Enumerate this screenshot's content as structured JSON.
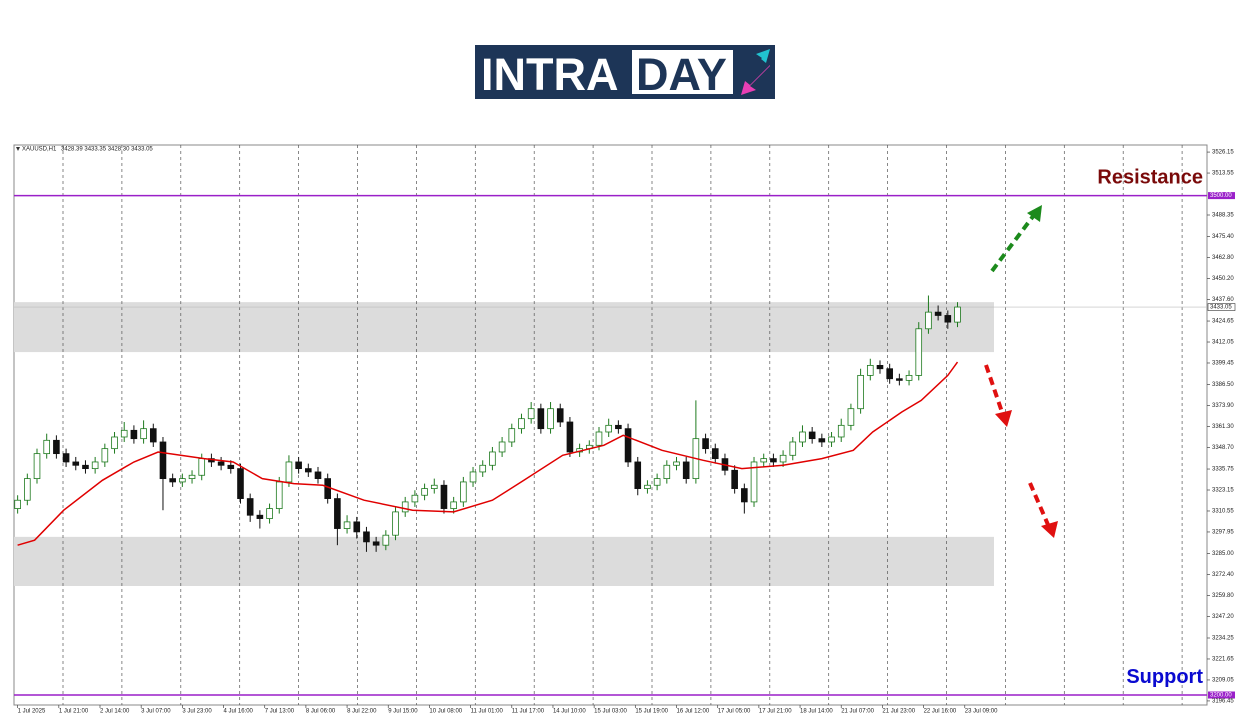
{
  "logo": {
    "left": "INTRA",
    "right": "DAY"
  },
  "chart_data": {
    "type": "candlestick",
    "title": "XAUUSD,H1",
    "subtitle": "3428.39 3433.35 3428.30 3433.05",
    "colors": {
      "up": "#1e7a1e",
      "down": "#111111"
    },
    "x": [
      0,
      4,
      8,
      12,
      16,
      20,
      24,
      28,
      32,
      36,
      40,
      44,
      48,
      52,
      56,
      60,
      64,
      68,
      72,
      76,
      80,
      84,
      88,
      92,
      96,
      100,
      104,
      108,
      112,
      116,
      120,
      124,
      128,
      132,
      136,
      140,
      144,
      148,
      152,
      156,
      160,
      164,
      168,
      172,
      176,
      180,
      184,
      188,
      192,
      196,
      200,
      204,
      208,
      212,
      216,
      220,
      224,
      228,
      232,
      236,
      240,
      244,
      248,
      252,
      256,
      260,
      264,
      268,
      272,
      276,
      280,
      284,
      288,
      292,
      296,
      300,
      304,
      308,
      312,
      316,
      320,
      324,
      328,
      332,
      336,
      340,
      344,
      348,
      352,
      356,
      360,
      364,
      368,
      372,
      376,
      380,
      384,
      388
    ],
    "open": [
      3312,
      3317,
      3330,
      3345,
      3353,
      3345,
      3340,
      3338,
      3336,
      3340,
      3348,
      3355,
      3359,
      3354,
      3360,
      3352,
      3330,
      3328,
      3330,
      3332,
      3342,
      3340,
      3338,
      3336,
      3318,
      3308,
      3306,
      3312,
      3328,
      3340,
      3336,
      3334,
      3330,
      3318,
      3300,
      3304,
      3298,
      3292,
      3290,
      3296,
      3310,
      3316,
      3320,
      3324,
      3326,
      3312,
      3316,
      3328,
      3334,
      3338,
      3346,
      3352,
      3360,
      3366,
      3372,
      3360,
      3372,
      3364,
      3346,
      3348,
      3350,
      3358,
      3362,
      3360,
      3340,
      3324,
      3326,
      3330,
      3338,
      3340,
      3330,
      3354,
      3348,
      3342,
      3335,
      3324,
      3316,
      3340,
      3342,
      3340,
      3344,
      3352,
      3358,
      3354,
      3352,
      3355,
      3362,
      3372,
      3392,
      3398,
      3396,
      3390,
      3389,
      3392,
      3420,
      3430,
      3428,
      3424
    ],
    "high": [
      3320,
      3333,
      3348,
      3357,
      3356,
      3348,
      3343,
      3341,
      3343,
      3351,
      3358,
      3364,
      3362,
      3365,
      3363,
      3355,
      3333,
      3333,
      3335,
      3345,
      3345,
      3343,
      3341,
      3339,
      3321,
      3311,
      3315,
      3331,
      3344,
      3343,
      3339,
      3337,
      3333,
      3321,
      3308,
      3307,
      3301,
      3295,
      3299,
      3313,
      3319,
      3323,
      3327,
      3330,
      3329,
      3319,
      3331,
      3337,
      3341,
      3349,
      3355,
      3363,
      3369,
      3376,
      3375,
      3376,
      3375,
      3367,
      3351,
      3353,
      3361,
      3366,
      3365,
      3363,
      3343,
      3329,
      3333,
      3341,
      3343,
      3343,
      3377,
      3357,
      3351,
      3345,
      3338,
      3327,
      3343,
      3345,
      3345,
      3347,
      3355,
      3362,
      3361,
      3357,
      3358,
      3366,
      3375,
      3396,
      3402,
      3401,
      3399,
      3393,
      3395,
      3424,
      3440,
      3434,
      3431,
      3436
    ],
    "low": [
      3309,
      3314,
      3327,
      3342,
      3342,
      3337,
      3335,
      3333,
      3333,
      3337,
      3345,
      3352,
      3351,
      3351,
      3349,
      3311,
      3325,
      3325,
      3327,
      3329,
      3337,
      3335,
      3333,
      3315,
      3304,
      3300,
      3303,
      3309,
      3325,
      3333,
      3331,
      3327,
      3315,
      3290,
      3297,
      3294,
      3286,
      3286,
      3287,
      3293,
      3307,
      3313,
      3317,
      3321,
      3309,
      3309,
      3313,
      3325,
      3331,
      3335,
      3343,
      3349,
      3357,
      3363,
      3357,
      3357,
      3361,
      3343,
      3343,
      3345,
      3347,
      3355,
      3357,
      3337,
      3320,
      3321,
      3323,
      3327,
      3335,
      3327,
      3327,
      3345,
      3339,
      3332,
      3321,
      3309,
      3313,
      3337,
      3337,
      3337,
      3341,
      3349,
      3351,
      3349,
      3349,
      3352,
      3359,
      3369,
      3389,
      3393,
      3387,
      3386,
      3386,
      3389,
      3417,
      3425,
      3420,
      3421
    ],
    "close": [
      3317,
      3330,
      3345,
      3353,
      3345,
      3340,
      3338,
      3336,
      3340,
      3348,
      3355,
      3359,
      3354,
      3360,
      3352,
      3330,
      3328,
      3330,
      3332,
      3342,
      3340,
      3338,
      3336,
      3318,
      3308,
      3306,
      3312,
      3328,
      3340,
      3336,
      3334,
      3330,
      3318,
      3300,
      3304,
      3298,
      3292,
      3290,
      3296,
      3310,
      3316,
      3320,
      3324,
      3326,
      3312,
      3316,
      3328,
      3334,
      3338,
      3346,
      3352,
      3360,
      3366,
      3372,
      3360,
      3372,
      3364,
      3346,
      3348,
      3350,
      3358,
      3362,
      3360,
      3340,
      3324,
      3326,
      3330,
      3338,
      3340,
      3330,
      3354,
      3348,
      3342,
      3335,
      3324,
      3316,
      3340,
      3342,
      3340,
      3344,
      3352,
      3358,
      3354,
      3352,
      3355,
      3362,
      3372,
      3392,
      3398,
      3396,
      3390,
      3389,
      3392,
      3420,
      3430,
      3428,
      3424,
      3433.05
    ],
    "ma": {
      "color": "#e00000",
      "x": [
        0,
        7,
        19,
        35,
        48,
        58,
        77,
        89,
        101,
        114,
        126,
        143,
        163,
        180,
        196,
        209,
        225,
        242,
        250,
        266,
        283,
        299,
        316,
        332,
        345,
        353,
        365,
        373,
        384,
        388
      ],
      "values": [
        3290,
        3293,
        3311,
        3329,
        3340,
        3346,
        3342,
        3340,
        3330,
        3327,
        3326,
        3317,
        3311,
        3310,
        3317,
        3329,
        3344,
        3350,
        3356,
        3347,
        3341,
        3336,
        3338,
        3342,
        3347,
        3358,
        3370,
        3377,
        3392,
        3400
      ]
    },
    "levels": [
      {
        "name": "Resistance",
        "value": 3500,
        "label": "3500.00",
        "color": "#9a1fc9",
        "name_color": "#7a0a0a"
      },
      {
        "name": "Support",
        "value": 3200,
        "label": "3200.00",
        "color": "#9a1fc9",
        "name_color": "#0a0ad0"
      }
    ],
    "zones": [
      [
        3406,
        3436
      ],
      [
        3265.5,
        3295
      ]
    ],
    "xlim": [
      -1.5,
      491
    ],
    "ylim": [
      3194,
      3530.4
    ],
    "yticks": [
      3526.15,
      3513.55,
      3488.35,
      {
        "value": 3475.4,
        "label": "3475.40"
      },
      {
        "value": 3462.8,
        "label": "3462.80"
      },
      {
        "value": 3450.2,
        "label": "3450.20"
      },
      {
        "value": 3437.6,
        "label": "3437.60"
      },
      3424.65,
      3412.05,
      3399.45,
      {
        "value": 3386.5,
        "label": "3386.50"
      },
      {
        "value": 3373.9,
        "label": "3373.90"
      },
      {
        "value": 3361.3,
        "label": "3361.30"
      },
      {
        "value": 3348.7,
        "label": "3348.70"
      },
      3335.75,
      3323.15,
      3310.55,
      3297.95,
      {
        "value": 3285,
        "label": "3285.00"
      },
      {
        "value": 3272.4,
        "label": "3272.40"
      },
      {
        "value": 3259.8,
        "label": "3259.80"
      },
      {
        "value": 3247.2,
        "label": "3247.20"
      },
      3234.25,
      3221.65,
      3209.05,
      3196.45
    ],
    "xticks": [
      {
        "value": 0,
        "label": "1 Jul 2025"
      },
      {
        "value": 17,
        "label": "1 Jul 21:00"
      },
      {
        "value": 34,
        "label": "2 Jul 14:00"
      },
      {
        "value": 51,
        "label": "3 Jul 07:00"
      },
      {
        "value": 68,
        "label": "3 Jul 23:00"
      },
      {
        "value": 85,
        "label": "4 Jul 16:00"
      },
      {
        "value": 102,
        "label": "7 Jul 13:00"
      },
      {
        "value": 119,
        "label": "8 Jul 06:00"
      },
      {
        "value": 136,
        "label": "8 Jul 22:00"
      },
      {
        "value": 153,
        "label": "9 Jul 15:00"
      },
      {
        "value": 170,
        "label": "10 Jul 08:00"
      },
      {
        "value": 187,
        "label": "11 Jul 01:00"
      },
      {
        "value": 204,
        "label": "11 Jul 17:00"
      },
      {
        "value": 221,
        "label": "14 Jul 10:00"
      },
      {
        "value": 238,
        "label": "15 Jul 03:00"
      },
      {
        "value": 255,
        "label": "15 Jul 19:00"
      },
      {
        "value": 272,
        "label": "16 Jul 12:00"
      },
      {
        "value": 289,
        "label": "17 Jul 05:00"
      },
      {
        "value": 306,
        "label": "17 Jul 21:00"
      },
      {
        "value": 323,
        "label": "18 Jul 14:00"
      },
      {
        "value": 340,
        "label": "21 Jul 07:00"
      },
      {
        "value": 357,
        "label": "21 Jul 23:00"
      },
      {
        "value": 374,
        "label": "22 Jul 16:00"
      },
      {
        "value": 391,
        "label": "23 Jul 09:00"
      }
    ]
  }
}
